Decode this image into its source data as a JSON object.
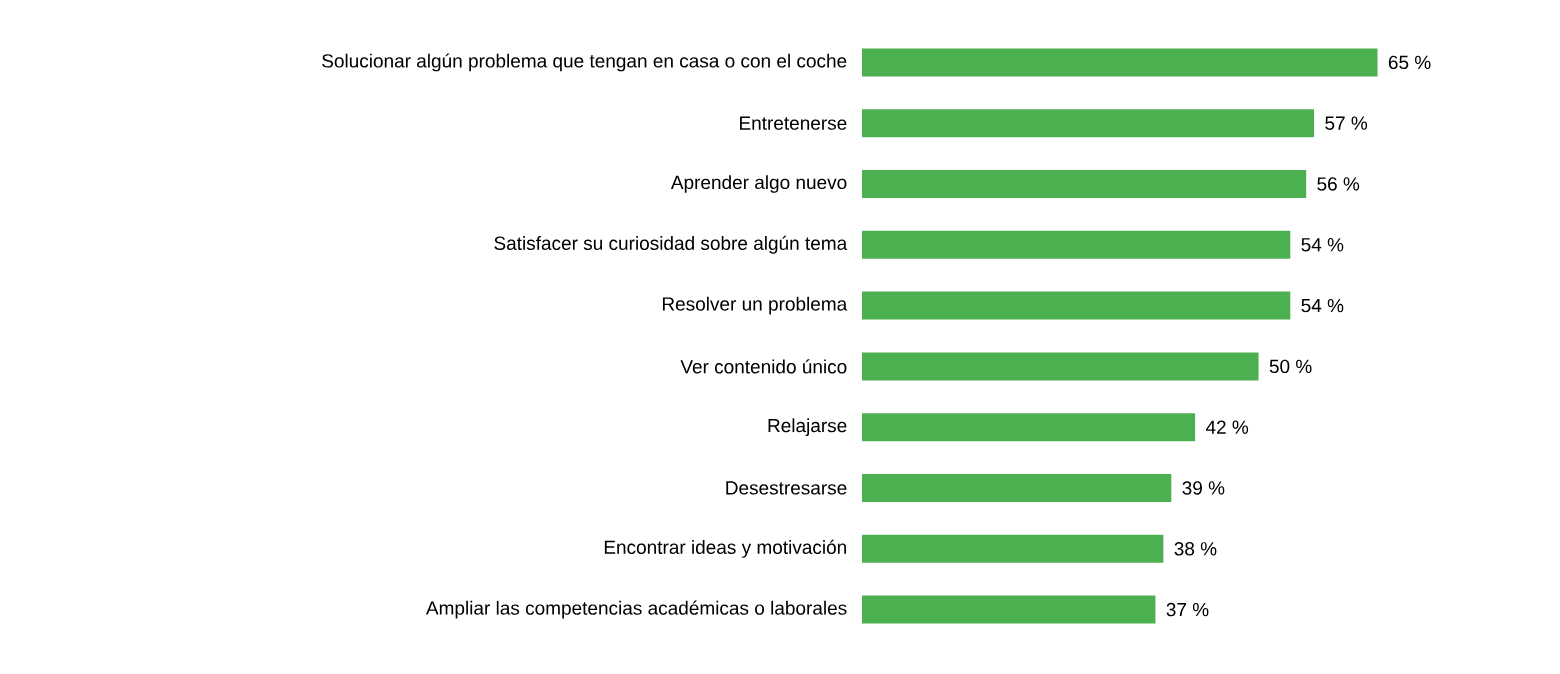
{
  "chart_data": {
    "type": "bar",
    "orientation": "horizontal",
    "color": "#4caf50",
    "categories": [
      "Solucionar algún problema que tengan en casa o con el coche",
      "Entretenerse",
      "Aprender algo nuevo",
      "Satisfacer su curiosidad sobre algún tema",
      "Resolver un problema",
      "Ver contenido único",
      "Relajarse",
      "Desestresarse",
      "Encontrar ideas y motivación",
      "Ampliar las competencias académicas o laborales"
    ],
    "values": [
      65,
      57,
      56,
      54,
      54,
      50,
      42,
      39,
      38,
      37
    ],
    "value_labels": [
      "65 %",
      "57 %",
      "56 %",
      "54 %",
      "54 %",
      "50 %",
      "42 %",
      "39 %",
      "38 %",
      "37 %"
    ]
  }
}
